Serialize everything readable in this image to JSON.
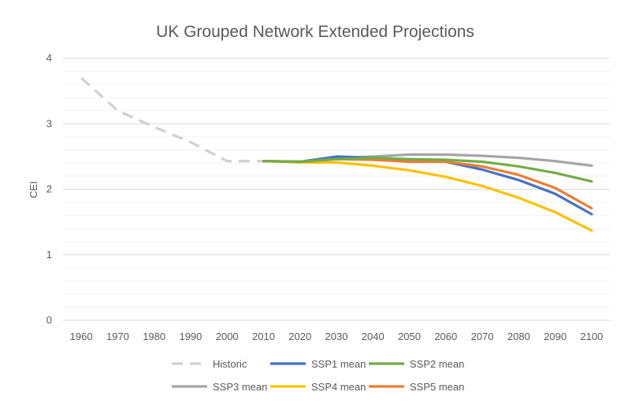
{
  "chart_data": {
    "type": "line",
    "title": "UK Grouped Network Extended Projections",
    "xlabel": "",
    "ylabel": "CEI",
    "categories": [
      "1960",
      "1970",
      "1980",
      "1990",
      "2000",
      "2010",
      "2020",
      "2030",
      "2040",
      "2050",
      "2060",
      "2070",
      "2080",
      "2090",
      "2100"
    ],
    "ylim": [
      0,
      4
    ],
    "yticks": [
      "0",
      "1",
      "2",
      "3",
      "4"
    ],
    "grid": "horizontal major and minor",
    "legend_position": "bottom",
    "series": [
      {
        "name": "Historic",
        "color": "#d0d0d0",
        "dash": true,
        "values": [
          3.7,
          3.2,
          2.95,
          2.72,
          2.43,
          2.43,
          null,
          null,
          null,
          null,
          null,
          null,
          null,
          null,
          null
        ]
      },
      {
        "name": "SSP1 mean",
        "color": "#4472c4",
        "dash": false,
        "values": [
          null,
          null,
          null,
          null,
          null,
          2.43,
          2.42,
          2.5,
          2.48,
          2.45,
          2.42,
          2.3,
          2.14,
          1.93,
          1.62
        ]
      },
      {
        "name": "SSP2 mean",
        "color": "#70ad47",
        "dash": false,
        "values": [
          null,
          null,
          null,
          null,
          null,
          2.43,
          2.42,
          2.46,
          2.48,
          2.46,
          2.45,
          2.42,
          2.35,
          2.25,
          2.12
        ]
      },
      {
        "name": "SSP3 mean",
        "color": "#a5a5a5",
        "dash": false,
        "values": [
          null,
          null,
          null,
          null,
          null,
          2.43,
          2.42,
          2.47,
          2.5,
          2.53,
          2.53,
          2.51,
          2.48,
          2.43,
          2.36
        ]
      },
      {
        "name": "SSP4 mean",
        "color": "#ffc000",
        "dash": false,
        "values": [
          null,
          null,
          null,
          null,
          null,
          2.43,
          2.41,
          2.41,
          2.36,
          2.29,
          2.19,
          2.05,
          1.87,
          1.65,
          1.37
        ]
      },
      {
        "name": "SSP5 mean",
        "color": "#ed7d31",
        "dash": false,
        "values": [
          null,
          null,
          null,
          null,
          null,
          2.43,
          2.42,
          2.46,
          2.45,
          2.42,
          2.42,
          2.35,
          2.22,
          2.02,
          1.71
        ]
      }
    ]
  }
}
